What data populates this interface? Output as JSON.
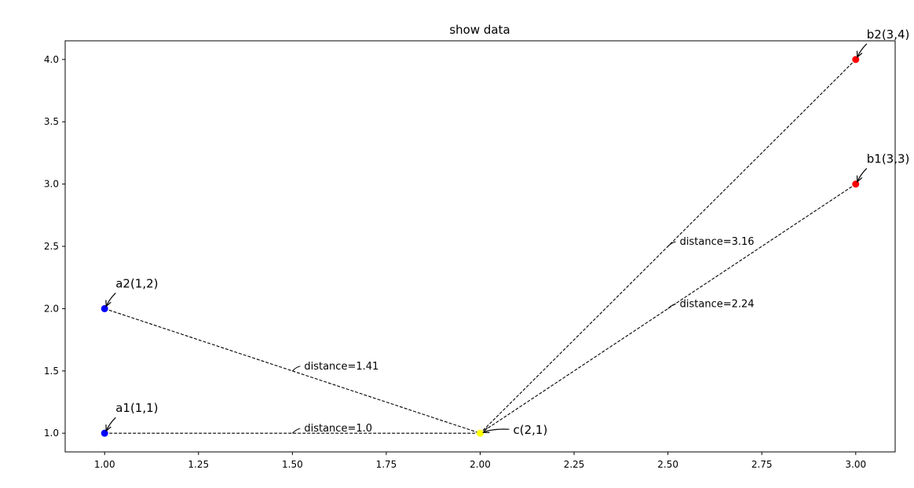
{
  "chart_data": {
    "type": "scatter",
    "title": "show data",
    "xlabel": "",
    "ylabel": "",
    "xlim": [
      0.895,
      3.105
    ],
    "ylim": [
      0.85,
      4.15
    ],
    "xticks": [
      "1.00",
      "1.25",
      "1.50",
      "1.75",
      "2.00",
      "2.25",
      "2.50",
      "2.75",
      "3.00"
    ],
    "yticks": [
      "1.0",
      "1.5",
      "2.0",
      "2.5",
      "3.0",
      "3.5",
      "4.0"
    ],
    "grid": false,
    "points": [
      {
        "label": "a1(1,1)",
        "x": 1,
        "y": 1,
        "color": "#0000ff"
      },
      {
        "label": "a2(1,2)",
        "x": 1,
        "y": 2,
        "color": "#0000ff"
      },
      {
        "label": "b1(3,3)",
        "x": 3,
        "y": 3,
        "color": "#ff0000"
      },
      {
        "label": "b2(3,4)",
        "x": 3,
        "y": 4,
        "color": "#ff0000"
      },
      {
        "label": "c(2,1)",
        "x": 2,
        "y": 1,
        "color": "#ffff00"
      }
    ],
    "distance_lines": [
      {
        "from": "a1(1,1)",
        "to": "c(2,1)",
        "label": "distance=1.0",
        "label_x": 1.5,
        "label_y": 1.0
      },
      {
        "from": "a2(1,2)",
        "to": "c(2,1)",
        "label": "distance=1.41",
        "label_x": 1.5,
        "label_y": 1.5
      },
      {
        "from": "b1(3,3)",
        "to": "c(2,1)",
        "label": "distance=2.24",
        "label_x": 2.5,
        "label_y": 2.0
      },
      {
        "from": "b2(3,4)",
        "to": "c(2,1)",
        "label": "distance=3.16",
        "label_x": 2.5,
        "label_y": 2.5
      }
    ]
  }
}
